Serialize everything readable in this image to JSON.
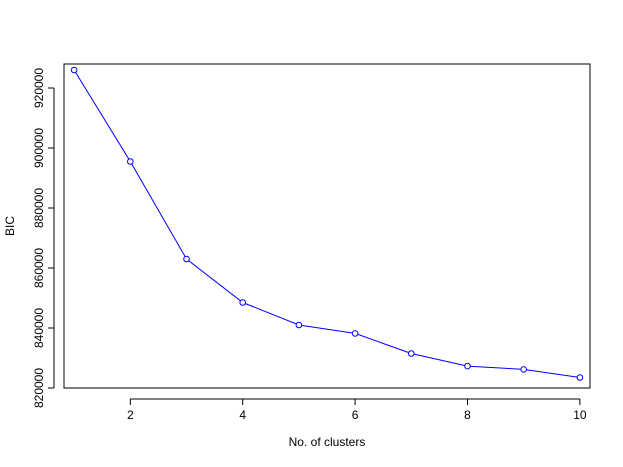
{
  "chart_data": {
    "type": "line",
    "title": "",
    "xlabel": "No. of clusters",
    "ylabel": "BIC",
    "x": [
      1,
      2,
      3,
      4,
      5,
      6,
      7,
      8,
      9,
      10
    ],
    "series": [
      {
        "values": [
          926000,
          895500,
          863000,
          848500,
          841000,
          838200,
          831500,
          827300,
          826200,
          823500
        ]
      }
    ],
    "xlim": [
      0.82,
      10.18
    ],
    "ylim": [
      820000,
      928000
    ],
    "xticks": [
      2,
      4,
      6,
      8,
      10
    ],
    "yticks": [
      820000,
      840000,
      860000,
      880000,
      900000,
      920000
    ],
    "grid": false,
    "marker": "open-circle",
    "colors": {
      "series": "#0000ff",
      "axis": "#000000"
    }
  }
}
